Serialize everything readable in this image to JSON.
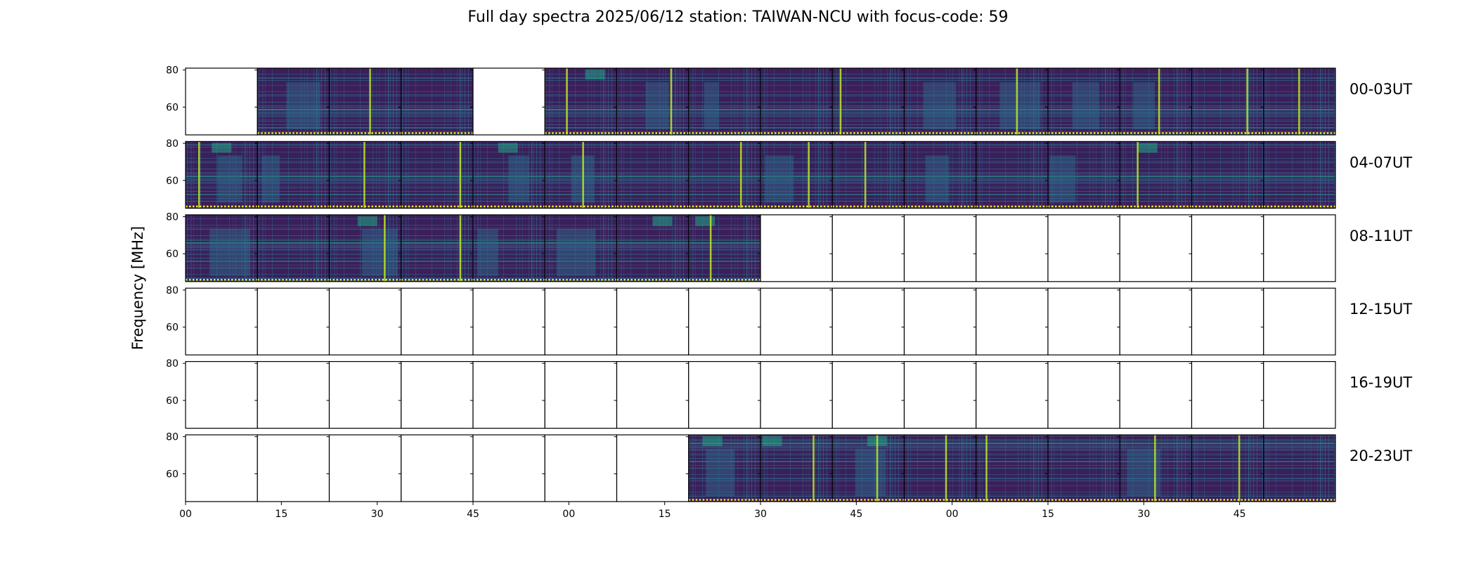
{
  "title": "Full day spectra 2025/06/12 station: TAIWAN-NCU with focus-code: 59",
  "colors": {
    "low": "#3b1f5a",
    "mid": "#2c6e8e",
    "high": "#21a585",
    "peak": "#b5de2b",
    "flag": "#fde725",
    "frame": "#000000"
  },
  "chart_data": {
    "type": "heatmap",
    "ylabel": "Frequency [MHz]",
    "yticks": [
      60,
      80
    ],
    "ylim": [
      45,
      81
    ],
    "xtick_labels": [
      "00",
      "15",
      "30",
      "45",
      "00",
      "15",
      "30",
      "45",
      "00",
      "15",
      "30",
      "45"
    ],
    "panel_minutes": 15,
    "rows": [
      {
        "label": "00-03UT",
        "hours": [
          0,
          1,
          2,
          3
        ],
        "data_mask": [
          0,
          1,
          1,
          1,
          0,
          1,
          1,
          1,
          1,
          1,
          1,
          1,
          1,
          1,
          1,
          1
        ]
      },
      {
        "label": "04-07UT",
        "hours": [
          4,
          5,
          6,
          7
        ],
        "data_mask": [
          1,
          1,
          1,
          1,
          1,
          1,
          1,
          1,
          1,
          1,
          1,
          1,
          1,
          1,
          1,
          1
        ]
      },
      {
        "label": "08-11UT",
        "hours": [
          8,
          9,
          10,
          11
        ],
        "data_mask": [
          1,
          1,
          1,
          1,
          1,
          1,
          1,
          1,
          0,
          0,
          0,
          0,
          0,
          0,
          0,
          0
        ]
      },
      {
        "label": "12-15UT",
        "hours": [
          12,
          13,
          14,
          15
        ],
        "data_mask": [
          0,
          0,
          0,
          0,
          0,
          0,
          0,
          0,
          0,
          0,
          0,
          0,
          0,
          0,
          0,
          0
        ]
      },
      {
        "label": "16-19UT",
        "hours": [
          16,
          17,
          18,
          19
        ],
        "data_mask": [
          0,
          0,
          0,
          0,
          0,
          0,
          0,
          0,
          0,
          0,
          0,
          0,
          0,
          0,
          0,
          0
        ]
      },
      {
        "label": "20-23UT",
        "hours": [
          20,
          21,
          22,
          23
        ],
        "data_mask": [
          0,
          0,
          0,
          0,
          0,
          0,
          0,
          1,
          1,
          1,
          1,
          1,
          1,
          1,
          1,
          1
        ]
      }
    ]
  }
}
